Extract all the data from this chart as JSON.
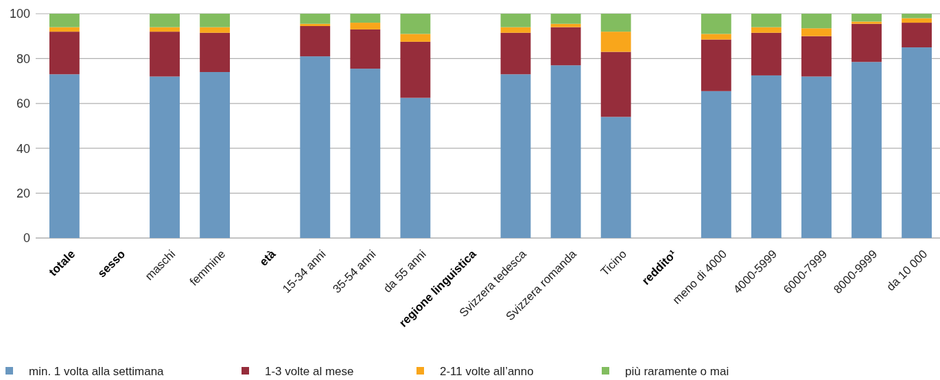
{
  "chart_data": {
    "type": "bar",
    "stacked": true,
    "categories": [
      "totale",
      "sesso",
      "maschi",
      "femmine",
      "età",
      "15-34 anni",
      "35-54 anni",
      "da 55 anni",
      "regione linguistica",
      "Svizzera tedesca",
      "Svizzera romanda",
      "Ticino",
      "reddito¹",
      "meno di 4000",
      "4000-5999",
      "6000-7999",
      "8000-9999",
      "da 10 000"
    ],
    "series": [
      {
        "name": "min. 1 volta alla settimana",
        "color": "#6a98c0",
        "values": [
          73,
          null,
          72,
          74,
          null,
          81,
          75.5,
          62.5,
          null,
          73,
          77,
          54,
          null,
          65.5,
          72.5,
          72,
          78.5,
          85
        ]
      },
      {
        "name": "1-3 volte al mese",
        "color": "#962d3b",
        "values": [
          19,
          null,
          20,
          17.5,
          null,
          13.5,
          17.5,
          25,
          null,
          18.5,
          17,
          29,
          null,
          23,
          19,
          18,
          17,
          11
        ]
      },
      {
        "name": "2-11 volte all’anno",
        "color": "#f9a61b",
        "values": [
          2,
          null,
          2,
          2.5,
          null,
          1,
          3,
          3.5,
          null,
          2.5,
          1.5,
          9,
          null,
          2.5,
          2.5,
          3.5,
          1,
          2
        ]
      },
      {
        "name": "più raramente o mai",
        "color": "#82bd5f",
        "values": [
          6,
          null,
          6,
          6,
          null,
          4.5,
          4,
          9,
          null,
          6,
          4.5,
          8,
          null,
          9,
          6,
          6.5,
          3.5,
          2
        ]
      }
    ],
    "ylim": [
      0,
      100
    ],
    "yticks": [
      0,
      20,
      40,
      60,
      80,
      100
    ],
    "grid": "y",
    "legend": "bottom"
  }
}
